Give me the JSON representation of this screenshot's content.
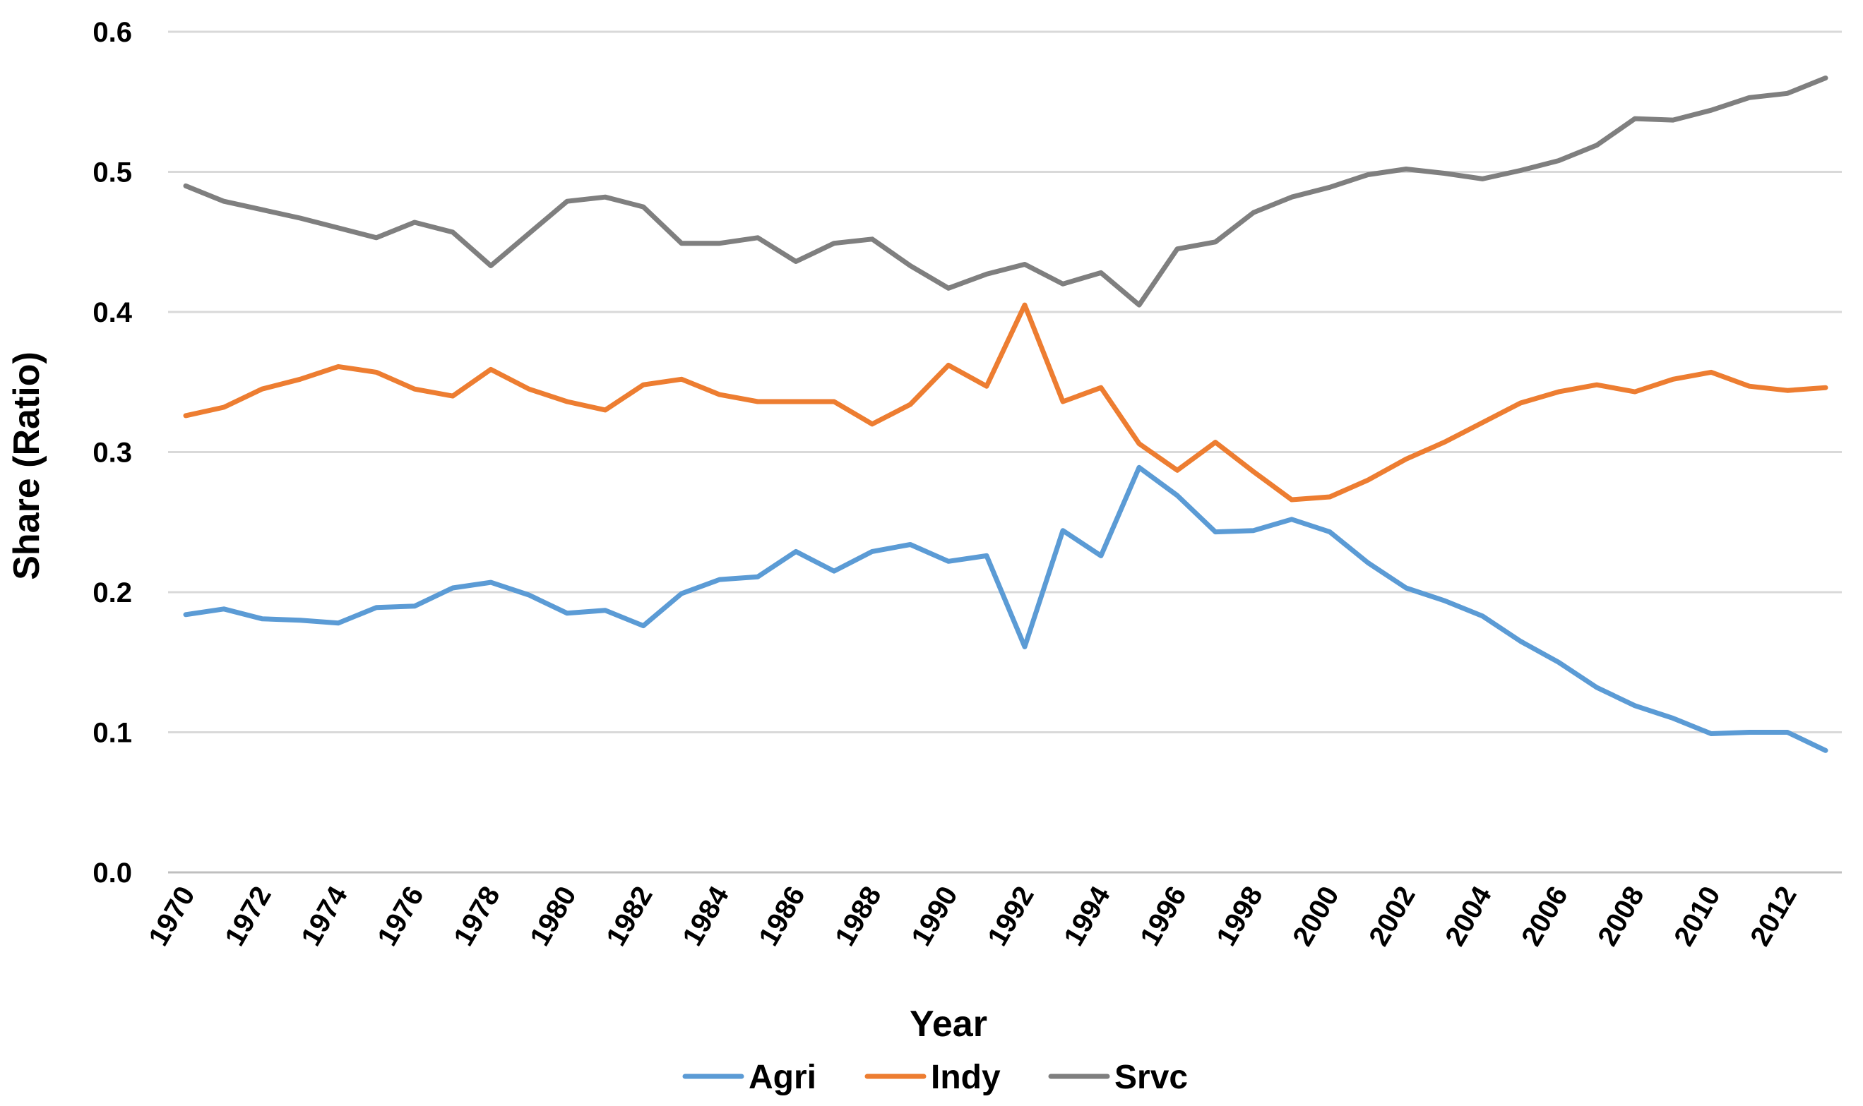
{
  "chart_data": {
    "type": "line",
    "title": "",
    "xlabel": "Year",
    "ylabel": "Share (Ratio)",
    "ylim": [
      0.0,
      0.6
    ],
    "yticks": [
      "0.0",
      "0.1",
      "0.2",
      "0.3",
      "0.4",
      "0.5",
      "0.6"
    ],
    "ytick_values": [
      0.0,
      0.1,
      0.2,
      0.3,
      0.4,
      0.5,
      0.6
    ],
    "grid": "horizontal",
    "legend_position": "bottom",
    "x": [
      1970,
      1971,
      1972,
      1973,
      1974,
      1975,
      1976,
      1977,
      1978,
      1979,
      1980,
      1981,
      1982,
      1983,
      1984,
      1985,
      1986,
      1987,
      1988,
      1989,
      1990,
      1991,
      1992,
      1993,
      1994,
      1995,
      1996,
      1997,
      1998,
      1999,
      2000,
      2001,
      2002,
      2003,
      2004,
      2005,
      2006,
      2007,
      2008,
      2009,
      2010,
      2011,
      2012,
      2013
    ],
    "xtick_labels": [
      "1970",
      "1972",
      "1974",
      "1976",
      "1978",
      "1980",
      "1982",
      "1984",
      "1986",
      "1988",
      "1990",
      "1992",
      "1994",
      "1996",
      "1998",
      "2000",
      "2002",
      "2004",
      "2006",
      "2008",
      "2010",
      "2012"
    ],
    "series": [
      {
        "name": "Agri",
        "color": "#5B9BD5",
        "values": [
          0.184,
          0.188,
          0.181,
          0.18,
          0.178,
          0.189,
          0.19,
          0.203,
          0.207,
          0.198,
          0.185,
          0.187,
          0.176,
          0.199,
          0.209,
          0.211,
          0.229,
          0.215,
          0.229,
          0.234,
          0.222,
          0.226,
          0.161,
          0.244,
          0.226,
          0.289,
          0.269,
          0.243,
          0.244,
          0.252,
          0.243,
          0.221,
          0.203,
          0.194,
          0.183,
          0.165,
          0.15,
          0.132,
          0.119,
          0.11,
          0.099,
          0.1,
          0.1,
          0.087
        ]
      },
      {
        "name": "Indy",
        "color": "#ED7D31",
        "values": [
          0.326,
          0.332,
          0.345,
          0.352,
          0.361,
          0.357,
          0.345,
          0.34,
          0.359,
          0.345,
          0.336,
          0.33,
          0.348,
          0.352,
          0.341,
          0.336,
          0.336,
          0.336,
          0.32,
          0.334,
          0.362,
          0.347,
          0.405,
          0.336,
          0.346,
          0.306,
          0.287,
          0.307,
          0.286,
          0.266,
          0.268,
          0.28,
          0.295,
          0.307,
          0.321,
          0.335,
          0.343,
          0.348,
          0.343,
          0.352,
          0.357,
          0.347,
          0.344,
          0.346
        ]
      },
      {
        "name": "Srvc",
        "color": "#7F7F7F",
        "values": [
          0.49,
          0.479,
          0.473,
          0.467,
          0.46,
          0.453,
          0.464,
          0.457,
          0.433,
          0.456,
          0.479,
          0.482,
          0.475,
          0.449,
          0.449,
          0.453,
          0.436,
          0.449,
          0.452,
          0.433,
          0.417,
          0.427,
          0.434,
          0.42,
          0.428,
          0.405,
          0.445,
          0.45,
          0.471,
          0.482,
          0.489,
          0.498,
          0.502,
          0.499,
          0.495,
          0.501,
          0.508,
          0.519,
          0.538,
          0.537,
          0.544,
          0.553,
          0.556,
          0.567
        ]
      }
    ]
  }
}
